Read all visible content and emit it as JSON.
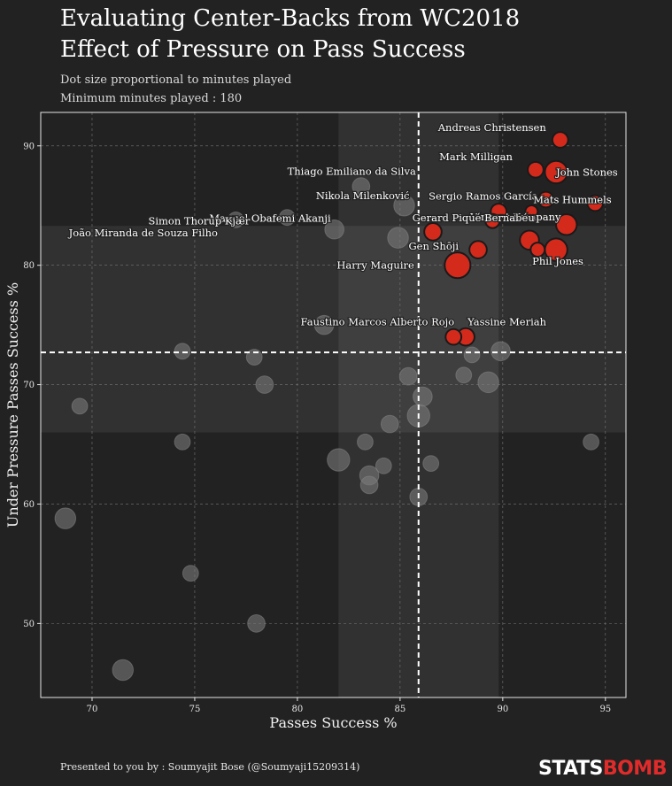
{
  "title_lines": [
    "Evaluating Center-Backs from WC2018",
    "Effect of Pressure on Pass Success"
  ],
  "subtitle_lines": [
    "Dot size proportional to minutes played",
    "Minimum minutes played : 180"
  ],
  "footer": "Presented to you by : Soumyajit Bose (@Soumyaji15209314)",
  "brand": {
    "part1": "STATS",
    "part2": "BOMB"
  },
  "colors": {
    "background": "#222222",
    "plot_bg": "#222222",
    "highlight": "#d42a1c",
    "grey_dot": "#6b6b6b"
  },
  "chart_data": {
    "type": "scatter",
    "xlabel": "Passes Success %",
    "ylabel": "Under Pressure Passes Success %",
    "xlim": [
      67.5,
      96
    ],
    "ylim": [
      43.8,
      92.8
    ],
    "xticks": [
      70,
      75,
      80,
      85,
      90,
      95
    ],
    "yticks": [
      50,
      60,
      70,
      80,
      90
    ],
    "grid": true,
    "mean_x": 85.9,
    "mean_y": 72.7,
    "band_x": [
      82,
      89.8
    ],
    "band_y": [
      66,
      83.3
    ],
    "highlighted": [
      {
        "label": "Andreas Christensen",
        "x": 92.8,
        "y": 90.5,
        "size": 6
      },
      {
        "label": "Mark Milligan",
        "x": 91.6,
        "y": 88.0,
        "size": 6
      },
      {
        "label": "John Stones",
        "x": 92.6,
        "y": 87.8,
        "size": 10
      },
      {
        "label": "Sergio Ramos García",
        "x": 92.1,
        "y": 85.5,
        "size": 6
      },
      {
        "label": "Mats Hummels",
        "x": 94.5,
        "y": 85.2,
        "size": 6
      },
      {
        "label": "Vincent Kompany",
        "x": 89.8,
        "y": 84.5,
        "size": 6
      },
      {
        "label": "Gerard Piqué Bernabéu",
        "x": 93.1,
        "y": 83.4,
        "size": 9
      },
      {
        "label": "Phil Jones",
        "x": 92.6,
        "y": 81.3,
        "size": 10
      },
      {
        "label": "Gen Shōji",
        "x": 88.8,
        "y": 81.3,
        "size": 7
      },
      {
        "label": "Harry Maguire",
        "x": 87.8,
        "y": 80.0,
        "size": 12
      },
      {
        "label": "Yassine Meriah",
        "x": 88.2,
        "y": 74.0,
        "size": 7
      },
      {
        "label": "Faustino Marcos Alberto Rojo",
        "x": 87.6,
        "y": 74.0,
        "size": 6
      }
    ],
    "highlighted_unlabeled": [
      {
        "x": 91.3,
        "y": 82.1,
        "size": 8
      },
      {
        "x": 91.7,
        "y": 81.3,
        "size": 5
      },
      {
        "x": 91.4,
        "y": 84.5,
        "size": 4
      },
      {
        "x": 89.5,
        "y": 83.7,
        "size": 5
      },
      {
        "x": 86.6,
        "y": 82.8,
        "size": 7
      }
    ],
    "others": [
      {
        "label": "Thiago Emiliano da Silva",
        "x": 83.1,
        "y": 86.6,
        "size": 7
      },
      {
        "label": "Nikola Milenković",
        "x": 85.2,
        "y": 85.0,
        "size": 9
      },
      {
        "label": "Manuel Obafemi Akanji",
        "x": 77.0,
        "y": 83.8,
        "size": 6
      },
      {
        "label": "Simon Thorup Kjær",
        "x": 79.5,
        "y": 84.0,
        "size": 6
      },
      {
        "label": "João Miranda de Souza Filho",
        "x": 81.8,
        "y": 83.0,
        "size": 8
      },
      {
        "label": "",
        "x": 84.9,
        "y": 82.3,
        "size": 9
      },
      {
        "label": "",
        "x": 81.3,
        "y": 75.0,
        "size": 8
      },
      {
        "label": "",
        "x": 74.4,
        "y": 72.8,
        "size": 6
      },
      {
        "label": "",
        "x": 77.9,
        "y": 72.3,
        "size": 6
      },
      {
        "label": "",
        "x": 78.4,
        "y": 70.0,
        "size": 7
      },
      {
        "label": "",
        "x": 69.4,
        "y": 68.2,
        "size": 6
      },
      {
        "label": "",
        "x": 85.4,
        "y": 70.7,
        "size": 7
      },
      {
        "label": "",
        "x": 86.1,
        "y": 69.0,
        "size": 8
      },
      {
        "label": "",
        "x": 85.9,
        "y": 67.4,
        "size": 10
      },
      {
        "label": "",
        "x": 84.5,
        "y": 66.7,
        "size": 7
      },
      {
        "label": "",
        "x": 88.1,
        "y": 70.8,
        "size": 6
      },
      {
        "label": "",
        "x": 88.5,
        "y": 72.5,
        "size": 6
      },
      {
        "label": "",
        "x": 89.3,
        "y": 70.2,
        "size": 9
      },
      {
        "label": "",
        "x": 89.9,
        "y": 72.8,
        "size": 8
      },
      {
        "label": "",
        "x": 74.4,
        "y": 65.2,
        "size": 6
      },
      {
        "label": "",
        "x": 83.3,
        "y": 65.2,
        "size": 6
      },
      {
        "label": "",
        "x": 82.0,
        "y": 63.7,
        "size": 10
      },
      {
        "label": "",
        "x": 83.5,
        "y": 62.4,
        "size": 8
      },
      {
        "label": "",
        "x": 84.2,
        "y": 63.2,
        "size": 6
      },
      {
        "label": "",
        "x": 83.5,
        "y": 61.6,
        "size": 7
      },
      {
        "label": "",
        "x": 86.5,
        "y": 63.4,
        "size": 6
      },
      {
        "label": "",
        "x": 85.9,
        "y": 60.6,
        "size": 7
      },
      {
        "label": "",
        "x": 94.3,
        "y": 65.2,
        "size": 6
      },
      {
        "label": "",
        "x": 68.7,
        "y": 58.8,
        "size": 9
      },
      {
        "label": "",
        "x": 74.8,
        "y": 54.2,
        "size": 6
      },
      {
        "label": "",
        "x": 78.0,
        "y": 50.0,
        "size": 7
      },
      {
        "label": "",
        "x": 71.5,
        "y": 46.1,
        "size": 9
      }
    ]
  }
}
